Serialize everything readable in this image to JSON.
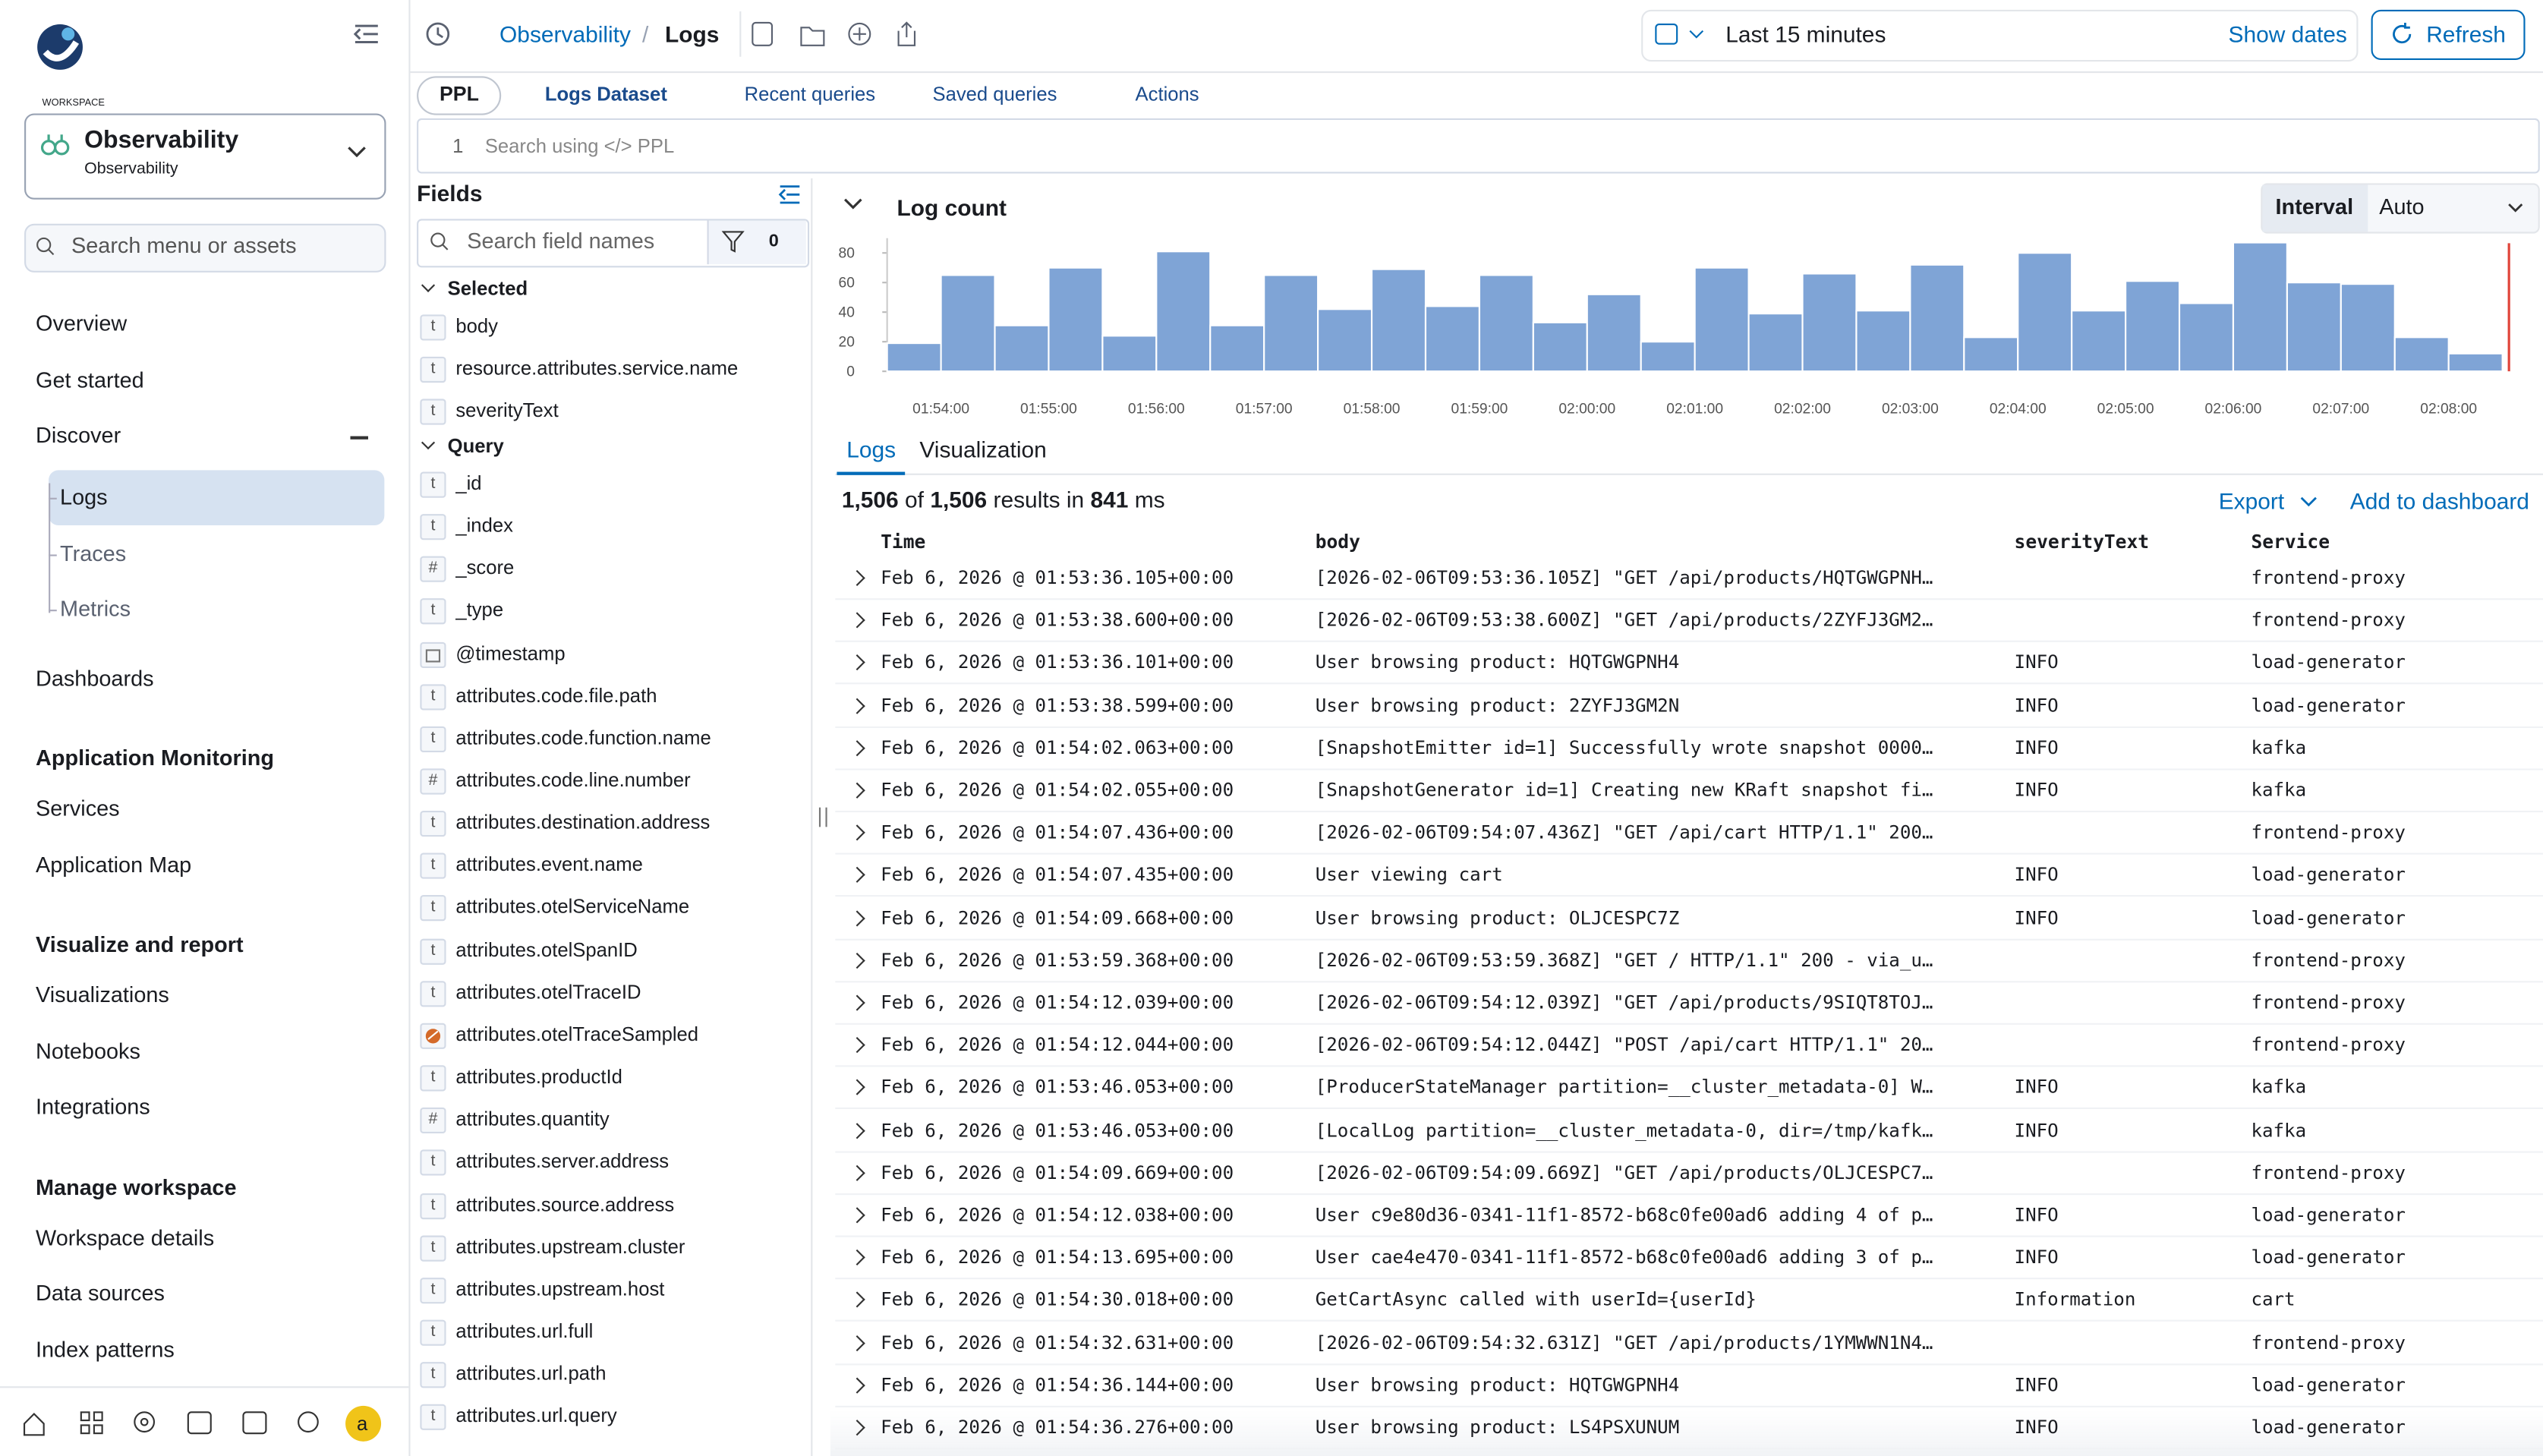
{
  "sidebar": {
    "workspace_caption": "WORKSPACE",
    "workspace": "Observability",
    "workspace_sub": "Observability",
    "search_placeholder": "Search menu or assets",
    "top_items": [
      "Overview",
      "Get started"
    ],
    "discover": {
      "label": "Discover",
      "children": [
        "Logs",
        "Traces",
        "Metrics"
      ]
    },
    "after_items": [
      "Dashboards"
    ],
    "sections": [
      {
        "title": "Application Monitoring",
        "items": [
          "Services",
          "Application Map"
        ]
      },
      {
        "title": "Visualize and report",
        "items": [
          "Visualizations",
          "Notebooks",
          "Integrations"
        ]
      },
      {
        "title": "Manage workspace",
        "items": [
          "Workspace details",
          "Data sources",
          "Index patterns"
        ]
      }
    ],
    "avatar": "a"
  },
  "toolbar": {
    "breadcrumb": [
      "Observability",
      "Logs"
    ],
    "time_range": "Last 15 minutes",
    "show_dates": "Show dates",
    "refresh": "Refresh"
  },
  "query": {
    "language": "PPL",
    "dataset": "Logs Dataset",
    "menus": [
      "Recent queries",
      "Saved queries",
      "Actions"
    ],
    "line_number": 1,
    "placeholder": "Search using </> PPL"
  },
  "fields": {
    "title": "Fields",
    "search_placeholder": "Search field names",
    "filter_count": 0,
    "groups": [
      {
        "title": "Selected",
        "fields": [
          {
            "name": "body",
            "type": "t"
          },
          {
            "name": "resource.attributes.service.name",
            "type": "t"
          },
          {
            "name": "severityText",
            "type": "t"
          }
        ]
      },
      {
        "title": "Query",
        "fields": [
          {
            "name": "_id",
            "type": "t"
          },
          {
            "name": "_index",
            "type": "t"
          },
          {
            "name": "_score",
            "type": "#"
          },
          {
            "name": "_type",
            "type": "t"
          },
          {
            "name": "@timestamp",
            "type": "date"
          },
          {
            "name": "attributes.code.file.path",
            "type": "t"
          },
          {
            "name": "attributes.code.function.name",
            "type": "t"
          },
          {
            "name": "attributes.code.line.number",
            "type": "#"
          },
          {
            "name": "attributes.destination.address",
            "type": "t"
          },
          {
            "name": "attributes.event.name",
            "type": "t"
          },
          {
            "name": "attributes.otelServiceName",
            "type": "t"
          },
          {
            "name": "attributes.otelSpanID",
            "type": "t"
          },
          {
            "name": "attributes.otelTraceID",
            "type": "t"
          },
          {
            "name": "attributes.otelTraceSampled",
            "type": "boolean"
          },
          {
            "name": "attributes.productId",
            "type": "t"
          },
          {
            "name": "attributes.quantity",
            "type": "#"
          },
          {
            "name": "attributes.server.address",
            "type": "t"
          },
          {
            "name": "attributes.source.address",
            "type": "t"
          },
          {
            "name": "attributes.upstream.cluster",
            "type": "t"
          },
          {
            "name": "attributes.upstream.host",
            "type": "t"
          },
          {
            "name": "attributes.url.full",
            "type": "t"
          },
          {
            "name": "attributes.url.path",
            "type": "t"
          },
          {
            "name": "attributes.url.query",
            "type": "t"
          }
        ]
      }
    ]
  },
  "chart_data": {
    "type": "bar",
    "title": "Log count",
    "interval_label": "Interval",
    "interval": "Auto",
    "color": "#7fa4d6",
    "values": [
      19,
      65,
      31,
      70,
      24,
      81,
      31,
      65,
      42,
      69,
      44,
      65,
      33,
      52,
      20,
      70,
      39,
      66,
      41,
      72,
      23,
      80,
      41,
      61,
      46,
      87,
      60,
      59,
      23,
      12
    ],
    "xtick_labels": [
      "01:54:00",
      "01:55:00",
      "01:56:00",
      "01:57:00",
      "01:58:00",
      "01:59:00",
      "02:00:00",
      "02:01:00",
      "02:02:00",
      "02:03:00",
      "02:04:00",
      "02:05:00",
      "02:06:00",
      "02:07:00",
      "02:08:00"
    ],
    "ylim": [
      0,
      90
    ],
    "yticks": [
      0,
      20,
      40,
      60,
      80
    ]
  },
  "results": {
    "tabs": [
      "Logs",
      "Visualization"
    ],
    "shown": "1,506",
    "of": "of",
    "total": "1,506",
    "results_in": "results in",
    "took": "841",
    "unit": "ms",
    "export": "Export",
    "add_to_dashboard": "Add to dashboard",
    "columns": [
      "Time",
      "body",
      "severityText",
      "Service"
    ],
    "rows": [
      [
        "Feb 6, 2026 @ 01:53:36.105+00:00",
        "[2026-02-06T09:53:36.105Z] \"GET /api/products/HQTGWGPNH…",
        null,
        "frontend-proxy"
      ],
      [
        "Feb 6, 2026 @ 01:53:38.600+00:00",
        "[2026-02-06T09:53:38.600Z] \"GET /api/products/2ZYFJ3GM2…",
        null,
        "frontend-proxy"
      ],
      [
        "Feb 6, 2026 @ 01:53:36.101+00:00",
        "User browsing product: HQTGWGPNH4",
        "INFO",
        "load-generator"
      ],
      [
        "Feb 6, 2026 @ 01:53:38.599+00:00",
        "User browsing product: 2ZYFJ3GM2N",
        "INFO",
        "load-generator"
      ],
      [
        "Feb 6, 2026 @ 01:54:02.063+00:00",
        "[SnapshotEmitter id=1] Successfully wrote snapshot 0000…",
        "INFO",
        "kafka"
      ],
      [
        "Feb 6, 2026 @ 01:54:02.055+00:00",
        "[SnapshotGenerator id=1] Creating new KRaft snapshot fi…",
        "INFO",
        "kafka"
      ],
      [
        "Feb 6, 2026 @ 01:54:07.436+00:00",
        "[2026-02-06T09:54:07.436Z] \"GET /api/cart HTTP/1.1\" 200…",
        null,
        "frontend-proxy"
      ],
      [
        "Feb 6, 2026 @ 01:54:07.435+00:00",
        "User viewing cart",
        "INFO",
        "load-generator"
      ],
      [
        "Feb 6, 2026 @ 01:54:09.668+00:00",
        "User browsing product: OLJCESPC7Z",
        "INFO",
        "load-generator"
      ],
      [
        "Feb 6, 2026 @ 01:53:59.368+00:00",
        "[2026-02-06T09:53:59.368Z] \"GET / HTTP/1.1\" 200 - via_u…",
        null,
        "frontend-proxy"
      ],
      [
        "Feb 6, 2026 @ 01:54:12.039+00:00",
        "[2026-02-06T09:54:12.039Z] \"GET /api/products/9SIQT8TOJ…",
        null,
        "frontend-proxy"
      ],
      [
        "Feb 6, 2026 @ 01:54:12.044+00:00",
        "[2026-02-06T09:54:12.044Z] \"POST /api/cart HTTP/1.1\" 20…",
        null,
        "frontend-proxy"
      ],
      [
        "Feb 6, 2026 @ 01:53:46.053+00:00",
        "[ProducerStateManager partition=__cluster_metadata-0] W…",
        "INFO",
        "kafka"
      ],
      [
        "Feb 6, 2026 @ 01:53:46.053+00:00",
        "[LocalLog partition=__cluster_metadata-0, dir=/tmp/kafk…",
        "INFO",
        "kafka"
      ],
      [
        "Feb 6, 2026 @ 01:54:09.669+00:00",
        "[2026-02-06T09:54:09.669Z] \"GET /api/products/OLJCESPC7…",
        null,
        "frontend-proxy"
      ],
      [
        "Feb 6, 2026 @ 01:54:12.038+00:00",
        "User c9e80d36-0341-11f1-8572-b68c0fe00ad6 adding 4 of p…",
        "INFO",
        "load-generator"
      ],
      [
        "Feb 6, 2026 @ 01:54:13.695+00:00",
        "User cae4e470-0341-11f1-8572-b68c0fe00ad6 adding 3 of p…",
        "INFO",
        "load-generator"
      ],
      [
        "Feb 6, 2026 @ 01:54:30.018+00:00",
        "GetCartAsync called with userId={userId}",
        "Information",
        "cart"
      ],
      [
        "Feb 6, 2026 @ 01:54:32.631+00:00",
        "[2026-02-06T09:54:32.631Z] \"GET /api/products/1YMWWN1N4…",
        null,
        "frontend-proxy"
      ],
      [
        "Feb 6, 2026 @ 01:54:36.144+00:00",
        "User browsing product: HQTGWGPNH4",
        "INFO",
        "load-generator"
      ],
      [
        "Feb 6, 2026 @ 01:54:36.276+00:00",
        "User browsing product: LS4PSXUNUM",
        "INFO",
        "load-generator"
      ]
    ]
  }
}
